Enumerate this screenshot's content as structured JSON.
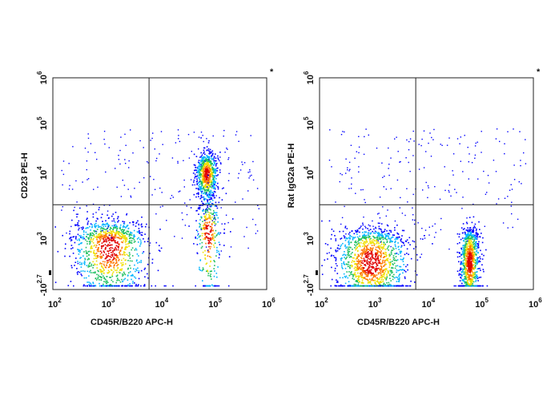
{
  "chart_data": [
    {
      "type": "scatter",
      "plot_style": "flow-cytometry density dot plot",
      "xlabel": "CD45R/B220 APC-H",
      "ylabel": "CD23 PE-H",
      "corner_mark": "*",
      "x_scale": "log",
      "y_scale": "biexponential",
      "xlim": [
        100,
        1000000
      ],
      "ylim": [
        -501,
        1000000
      ],
      "x_ticks": [
        {
          "base": "10",
          "exp": "2",
          "value": 100
        },
        {
          "base": "10",
          "exp": "3",
          "value": 1000
        },
        {
          "base": "10",
          "exp": "4",
          "value": 10000
        },
        {
          "base": "10",
          "exp": "5",
          "value": 100000
        },
        {
          "base": "10",
          "exp": "6",
          "value": 1000000
        }
      ],
      "y_ticks": [
        {
          "base": "-10",
          "exp": "2.7",
          "value": -501
        },
        {
          "base": "10",
          "exp": "3",
          "value": 1000
        },
        {
          "base": "10",
          "exp": "4",
          "value": 10000
        },
        {
          "base": "10",
          "exp": "5",
          "value": 100000
        },
        {
          "base": "10",
          "exp": "6",
          "value": 1000000
        }
      ],
      "gates": {
        "x": 6300,
        "y": 3300
      },
      "colors": [
        "#0000ff",
        "#00b4ff",
        "#20c060",
        "#f0e000",
        "#ff7700",
        "#e00000"
      ],
      "populations": [
        {
          "x_log": 3.05,
          "y_log": 2.95,
          "x_spread": 0.35,
          "y_spread": 0.18,
          "weight": 0.42
        },
        {
          "x_log": 4.87,
          "y_log": 4.0,
          "x_spread": 0.1,
          "y_spread": 0.22,
          "weight": 0.28
        },
        {
          "x_log": 4.9,
          "y_log": 3.1,
          "x_spread": 0.12,
          "y_spread": 0.3,
          "weight": 0.12
        }
      ]
    },
    {
      "type": "scatter",
      "plot_style": "flow-cytometry density dot plot",
      "xlabel": "CD45R/B220 APC-H",
      "ylabel": "Rat IgG2a PE-H",
      "corner_mark": "*",
      "x_scale": "log",
      "y_scale": "biexponential",
      "xlim": [
        100,
        1000000
      ],
      "ylim": [
        -501,
        1000000
      ],
      "x_ticks": [
        {
          "base": "10",
          "exp": "2",
          "value": 100
        },
        {
          "base": "10",
          "exp": "3",
          "value": 1000
        },
        {
          "base": "10",
          "exp": "4",
          "value": 10000
        },
        {
          "base": "10",
          "exp": "5",
          "value": 100000
        },
        {
          "base": "10",
          "exp": "6",
          "value": 1000000
        }
      ],
      "y_ticks": [
        {
          "base": "-10",
          "exp": "2.7",
          "value": -501
        },
        {
          "base": "10",
          "exp": "3",
          "value": 1000
        },
        {
          "base": "10",
          "exp": "4",
          "value": 10000
        },
        {
          "base": "10",
          "exp": "5",
          "value": 100000
        },
        {
          "base": "10",
          "exp": "6",
          "value": 1000000
        }
      ],
      "gates": {
        "x": 6300,
        "y": 3300
      },
      "colors": [
        "#0000ff",
        "#00b4ff",
        "#20c060",
        "#f0e000",
        "#ff7700",
        "#e00000"
      ],
      "populations": [
        {
          "x_log": 2.95,
          "y_log": 2.85,
          "x_spread": 0.35,
          "y_spread": 0.15,
          "weight": 0.5
        },
        {
          "x_log": 4.8,
          "y_log": 2.85,
          "x_spread": 0.09,
          "y_spread": 0.15,
          "weight": 0.38
        }
      ]
    }
  ]
}
